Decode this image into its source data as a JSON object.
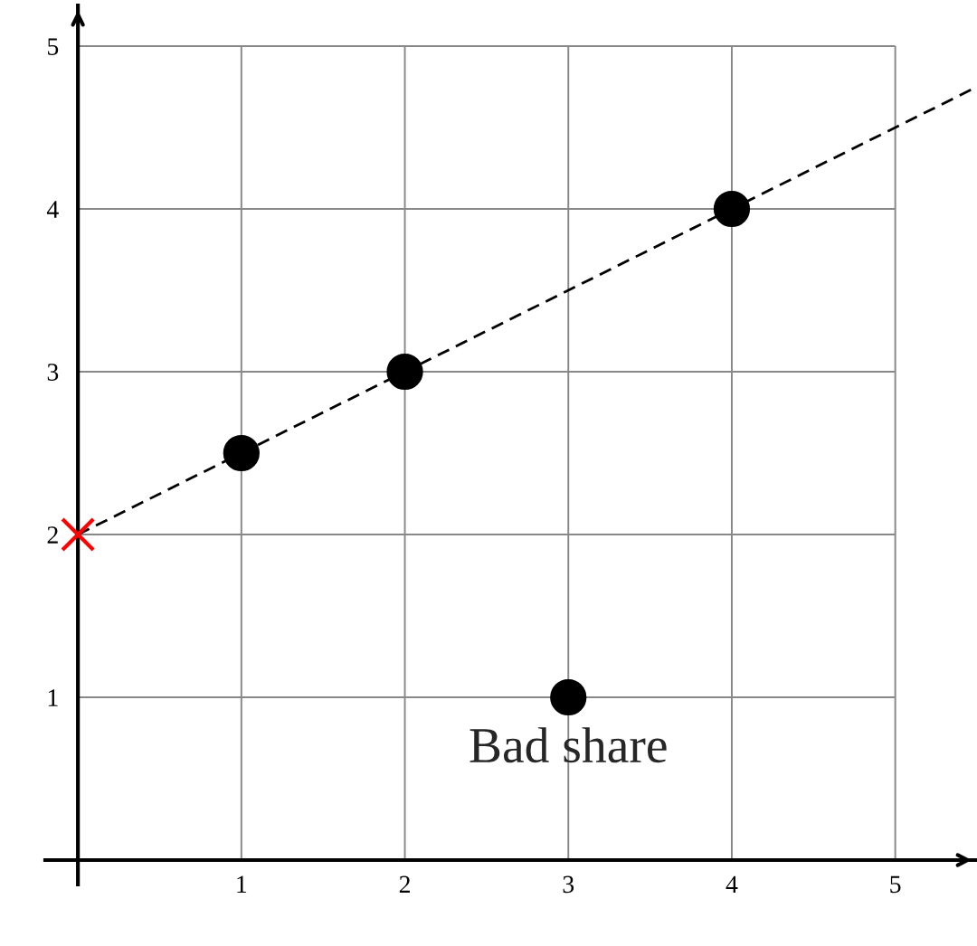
{
  "chart_data": {
    "type": "scatter",
    "xlim": [
      -0.2,
      5.5
    ],
    "ylim": [
      -0.15,
      5.25
    ],
    "xticks": [
      1,
      2,
      3,
      4,
      5
    ],
    "yticks": [
      1,
      2,
      3,
      4,
      5
    ],
    "grid": true,
    "series": [
      {
        "type": "line",
        "x": [
          0,
          5.5
        ],
        "values": [
          2,
          4.75
        ],
        "color": "#000000",
        "line_style": "dashed",
        "marker": "none"
      },
      {
        "x": [
          1,
          2,
          3,
          4
        ],
        "values": [
          2.5,
          3,
          1,
          4
        ],
        "color": "#000000",
        "marker": "circle"
      },
      {
        "type": "scatter",
        "x": [
          0
        ],
        "values": [
          2
        ],
        "color": "#ff0000",
        "marker": "cross"
      }
    ],
    "annotations": [
      {
        "text": "Bad share",
        "x": 3,
        "y": 1
      }
    ]
  }
}
